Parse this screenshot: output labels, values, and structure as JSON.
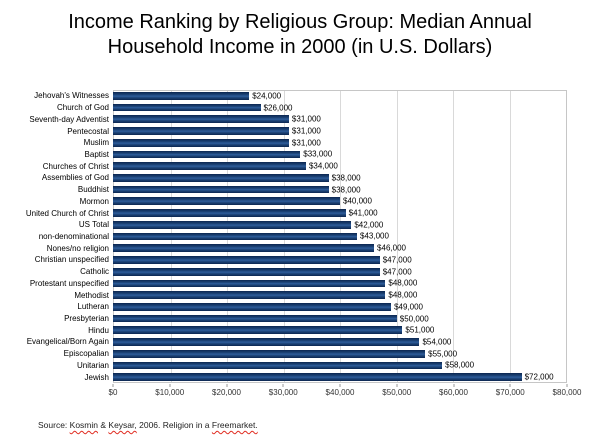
{
  "page": {
    "title": "Income Ranking by Religious Group: Median Annual Household Income in 2000 (in U.S. Dollars)",
    "source": {
      "prefix": "Source: ",
      "author1": "Kosmin",
      "sep1": " & ",
      "author2": "Keysar,",
      "sep2": " 2006. Religion in a ",
      "work": "Freemarket."
    }
  },
  "colors": {
    "bar_dark": "#0b2650",
    "bar_mid": "#2e5d9c",
    "gridline": "#d9d9d9",
    "plot_border": "#c6c6c6",
    "axis_text": "#333333",
    "title_text": "#000000",
    "spellcheck_red": "#e02b20"
  },
  "chart_data": {
    "type": "bar",
    "orientation": "horizontal",
    "title": "Income Ranking by Religious Group: Median Annual Household Income in 2000 (in U.S. Dollars)",
    "xlabel": "",
    "ylabel": "",
    "xlim": [
      0,
      80000
    ],
    "grid": "vertical gridlines at every $10,000",
    "legend": "none",
    "categories": [
      "Jehovah's Witnesses",
      "Church of God",
      "Seventh-day Adventist",
      "Pentecostal",
      "Muslim",
      "Baptist",
      "Churches of Christ",
      "Assemblies of God",
      "Buddhist",
      "Mormon",
      "United Church of Christ",
      "US Total",
      "non-denominational",
      "Nones/no religion",
      "Christian unspecified",
      "Catholic",
      "Protestant unspecified",
      "Methodist",
      "Lutheran",
      "Presbyterian",
      "Hindu",
      "Evangelical/Born Again",
      "Episcopalian",
      "Unitarian",
      "Jewish"
    ],
    "values": [
      24000,
      26000,
      31000,
      31000,
      31000,
      33000,
      34000,
      38000,
      38000,
      40000,
      41000,
      42000,
      43000,
      46000,
      47000,
      47000,
      48000,
      48000,
      49000,
      50000,
      51000,
      54000,
      55000,
      58000,
      72000
    ],
    "value_labels": [
      "$24,000",
      "$26,000",
      "$31,000",
      "$31,000",
      "$31,000",
      "$33,000",
      "$34,000",
      "$38,000",
      "$38,000",
      "$40,000",
      "$41,000",
      "$42,000",
      "$43,000",
      "$46,000",
      "$47,000",
      "$47,000",
      "$48,000",
      "$48,000",
      "$49,000",
      "$50,000",
      "$51,000",
      "$54,000",
      "$55,000",
      "$58,000",
      "$72,000"
    ],
    "ticks": {
      "values": [
        0,
        10000,
        20000,
        30000,
        40000,
        50000,
        60000,
        70000,
        80000
      ],
      "labels": [
        "$0",
        "$10,000",
        "$20,000",
        "$30,000",
        "$40,000",
        "$50,000",
        "$60,000",
        "$70,000",
        "$80,000"
      ]
    }
  }
}
